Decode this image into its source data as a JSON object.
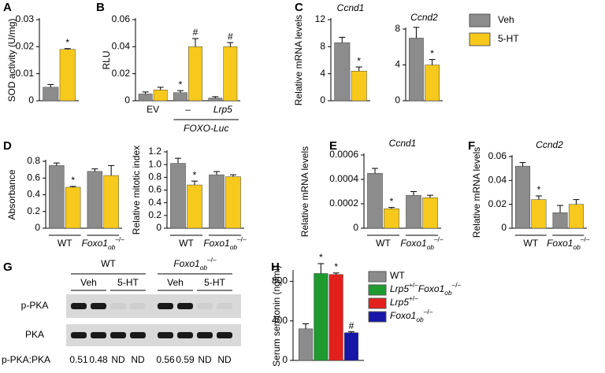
{
  "legend": {
    "entries": [
      {
        "name": "Veh",
        "color": "#8c8c8c"
      },
      {
        "name": "5-HT",
        "color": "#f6c91c"
      }
    ]
  },
  "chart_data": [
    {
      "type": "bar",
      "panel": "A",
      "ylabel": "SOD activity (U/mg)",
      "categories": [
        null
      ],
      "series": [
        {
          "color": "#8c8c8c",
          "values": [
            0.005
          ],
          "errors": [
            0.001
          ],
          "labels": [
            null
          ]
        },
        {
          "color": "#f6c91c",
          "values": [
            0.019
          ],
          "errors": [
            0.0003
          ],
          "labels": [
            "*"
          ]
        }
      ],
      "ylim": [
        0,
        0.03
      ],
      "yticks": [
        0,
        0.01,
        0.02,
        0.03
      ]
    },
    {
      "type": "bar",
      "panel": "B",
      "ylabel": "RLU",
      "categories": [
        "EV",
        "–",
        {
          "parts": [
            {
              "text": "Lrp5",
              "italic": true
            }
          ]
        }
      ],
      "subgroup_label": {
        "parts": [
          {
            "text": "FOXO-Luc",
            "italic": true
          }
        ]
      },
      "series": [
        {
          "color": "#8c8c8c",
          "values": [
            0.005,
            0.006,
            0.002
          ],
          "errors": [
            0.0015,
            0.0015,
            0.001
          ],
          "labels": [
            null,
            "*",
            null
          ]
        },
        {
          "color": "#f6c91c",
          "values": [
            0.008,
            0.04,
            0.04
          ],
          "errors": [
            0.002,
            0.006,
            0.003
          ],
          "labels": [
            null,
            "#",
            "#"
          ]
        }
      ],
      "ylim": [
        0,
        0.06
      ],
      "yticks": [
        0,
        0.02,
        0.04,
        0.06
      ]
    },
    {
      "type": "bar",
      "panel": "C",
      "title": {
        "parts": [
          {
            "text": "Ccnd1",
            "italic": true
          }
        ]
      },
      "ylabel": "Relative mRNA levels",
      "categories": [
        null
      ],
      "series": [
        {
          "color": "#8c8c8c",
          "values": [
            8.6
          ],
          "errors": [
            0.8
          ],
          "labels": [
            null
          ]
        },
        {
          "color": "#f6c91c",
          "values": [
            4.4
          ],
          "errors": [
            0.6
          ],
          "labels": [
            "*"
          ]
        }
      ],
      "ylim": [
        0,
        12
      ],
      "yticks": [
        0,
        4,
        8,
        12
      ]
    },
    {
      "type": "bar",
      "title": {
        "parts": [
          {
            "text": "Ccnd2",
            "italic": true
          }
        ]
      },
      "categories": [
        null
      ],
      "series": [
        {
          "color": "#8c8c8c",
          "values": [
            7.0
          ],
          "errors": [
            1.2
          ],
          "labels": [
            null
          ]
        },
        {
          "color": "#f6c91c",
          "values": [
            4.0
          ],
          "errors": [
            0.6
          ],
          "labels": [
            "*"
          ]
        }
      ],
      "ylim": [
        0,
        8
      ],
      "yticks": [
        0,
        4,
        8
      ]
    },
    {
      "type": "bar",
      "panel": "D",
      "ylabel": "Absorbance",
      "categories": [
        "WT",
        {
          "parts": [
            {
              "text": "Foxo1",
              "italic": true
            },
            {
              "text": "ob",
              "pos": "sub",
              "italic": true
            },
            {
              "text": "–/–",
              "pos": "sup"
            }
          ]
        }
      ],
      "series": [
        {
          "color": "#8c8c8c",
          "values": [
            0.75,
            0.68
          ],
          "errors": [
            0.03,
            0.03
          ],
          "labels": [
            null,
            null
          ]
        },
        {
          "color": "#f6c91c",
          "values": [
            0.49,
            0.63
          ],
          "errors": [
            0.01,
            0.12
          ],
          "labels": [
            "*",
            null
          ]
        }
      ],
      "ylim": [
        0,
        0.8
      ],
      "yticks": [
        0,
        0.2,
        0.4,
        0.6,
        0.8
      ]
    },
    {
      "type": "bar",
      "ylabel": "Relative mitotic index",
      "categories": [
        "WT",
        {
          "parts": [
            {
              "text": "Foxo1",
              "italic": true
            },
            {
              "text": "ob",
              "pos": "sub",
              "italic": true
            },
            {
              "text": "–/–",
              "pos": "sup"
            }
          ]
        }
      ],
      "series": [
        {
          "color": "#8c8c8c",
          "values": [
            1.02,
            0.84
          ],
          "errors": [
            0.08,
            0.05
          ],
          "labels": [
            null,
            null
          ]
        },
        {
          "color": "#f6c91c",
          "values": [
            0.68,
            0.81
          ],
          "errors": [
            0.06,
            0.03
          ],
          "labels": [
            "*",
            null
          ]
        }
      ],
      "ylim": [
        0,
        1.2
      ],
      "yticks": [
        0,
        0.2,
        0.4,
        0.6,
        0.8,
        {
          "value": 1,
          "label": "1.0"
        },
        1.2
      ]
    },
    {
      "type": "bar",
      "panel": "E",
      "title": {
        "parts": [
          {
            "text": "Ccnd1",
            "italic": true
          }
        ]
      },
      "ylabel": "Relative mRNA levels",
      "categories": [
        "WT",
        {
          "parts": [
            {
              "text": "Foxo1",
              "italic": true
            },
            {
              "text": "ob",
              "pos": "sub",
              "italic": true
            },
            {
              "text": "–/–",
              "pos": "sup"
            }
          ]
        }
      ],
      "series": [
        {
          "color": "#8c8c8c",
          "values": [
            0.00045,
            0.00027
          ],
          "errors": [
            4e-05,
            3e-05
          ],
          "labels": [
            null,
            null
          ]
        },
        {
          "color": "#f6c91c",
          "values": [
            0.00016,
            0.00025
          ],
          "errors": [
            1e-05,
            2e-05
          ],
          "labels": [
            "*",
            null
          ]
        }
      ],
      "ylim": [
        0,
        0.0006
      ],
      "yticks": [
        0,
        0.0002,
        0.0004,
        0.0006
      ]
    },
    {
      "type": "bar",
      "panel": "F",
      "title": {
        "parts": [
          {
            "text": "Ccnd2",
            "italic": true
          }
        ]
      },
      "ylabel": "Relative mRNA levels",
      "categories": [
        "WT",
        {
          "parts": [
            {
              "text": "Foxo1",
              "italic": true
            },
            {
              "text": "ob",
              "pos": "sub",
              "italic": true
            },
            {
              "text": "–/–",
              "pos": "sup"
            }
          ]
        }
      ],
      "series": [
        {
          "color": "#8c8c8c",
          "values": [
            0.052,
            0.013
          ],
          "errors": [
            0.003,
            0.006
          ],
          "labels": [
            null,
            null
          ]
        },
        {
          "color": "#f6c91c",
          "values": [
            0.024,
            0.02
          ],
          "errors": [
            0.003,
            0.004
          ],
          "labels": [
            "*",
            null
          ]
        }
      ],
      "ylim": [
        0,
        0.06
      ],
      "yticks": [
        0,
        0.02,
        0.04,
        0.06
      ]
    },
    {
      "type": "blot",
      "panel": "G",
      "groups": [
        "WT",
        {
          "parts": [
            {
              "text": "Foxo1",
              "italic": true
            },
            {
              "text": "ob",
              "pos": "sub",
              "italic": true
            },
            {
              "text": "–/–",
              "pos": "sup"
            }
          ]
        }
      ],
      "treatments": [
        "Veh",
        "5-HT",
        "Veh",
        "5-HT"
      ],
      "rows": [
        "p-PKA",
        "PKA"
      ],
      "ratio_label": "p-PKA:PKA",
      "ratios": [
        0.51,
        0.48,
        "ND",
        "ND",
        0.56,
        0.59,
        "ND",
        "ND"
      ]
    },
    {
      "type": "bar",
      "panel": "H",
      "ylabel": "Serum serotonin (ng/ml)",
      "categories": [
        null
      ],
      "series": [
        {
          "name": "WT",
          "color": "#8c8c8c",
          "values": [
            320
          ],
          "errors": [
            50
          ],
          "labels": [
            null
          ]
        },
        {
          "name": {
            "parts": [
              {
                "text": "Lrp5",
                "italic": true
              },
              {
                "text": "+/–",
                "pos": "sup"
              },
              {
                "text": "Foxo1",
                "italic": true
              },
              {
                "text": "ob",
                "pos": "sub",
                "italic": true
              },
              {
                "text": "–/–",
                "pos": "sup"
              }
            ]
          },
          "color": "#1f9a2f",
          "values": [
            880
          ],
          "errors": [
            100
          ],
          "labels": [
            "*"
          ]
        },
        {
          "name": {
            "parts": [
              {
                "text": "Lrp5",
                "italic": true
              },
              {
                "text": "+/–",
                "pos": "sup"
              }
            ]
          },
          "color": "#e3201b",
          "values": [
            870
          ],
          "errors": [
            15
          ],
          "labels": [
            "*"
          ]
        },
        {
          "name": {
            "parts": [
              {
                "text": "Foxo1",
                "italic": true
              },
              {
                "text": "ob",
                "pos": "sub",
                "italic": true
              },
              {
                "text": "–/–",
                "pos": "sup"
              }
            ]
          },
          "color": "#1616a8",
          "values": [
            280
          ],
          "errors": [
            10
          ],
          "labels": [
            "#"
          ]
        }
      ],
      "ylim": [
        0,
        900
      ],
      "yticks": [
        0,
        400,
        800
      ]
    }
  ]
}
